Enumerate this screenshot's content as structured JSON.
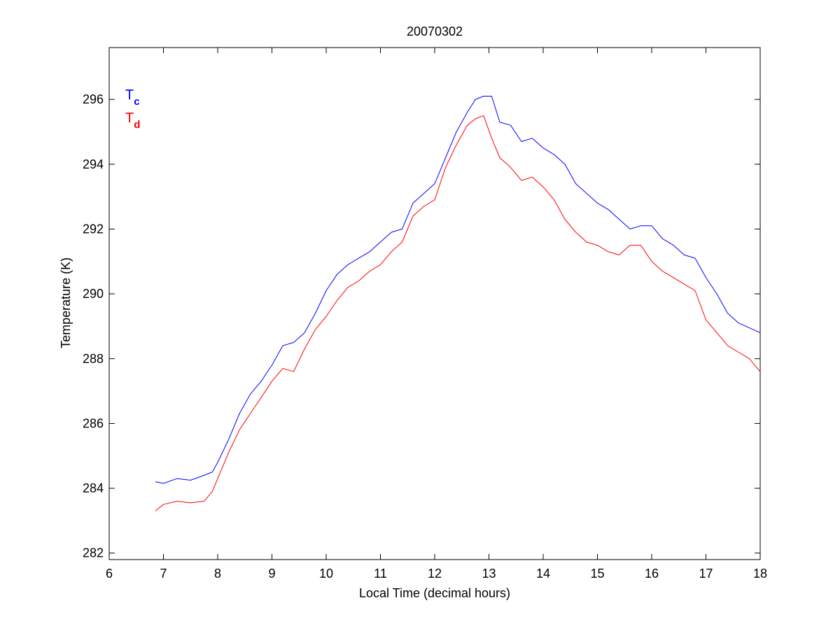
{
  "chart_data": {
    "type": "line",
    "title": "20070302",
    "xlabel": "Local Time (decimal hours)",
    "ylabel": "Temperature (K)",
    "xlim": [
      6,
      18
    ],
    "ylim": [
      281.8,
      297.6
    ],
    "xticks": [
      6,
      7,
      8,
      9,
      10,
      11,
      12,
      13,
      14,
      15,
      16,
      17,
      18
    ],
    "yticks": [
      282,
      284,
      286,
      288,
      290,
      292,
      294,
      296
    ],
    "xtick_labels": [
      "6",
      "7",
      "8",
      "9",
      "10",
      "11",
      "12",
      "13",
      "14",
      "15",
      "16",
      "17",
      "18"
    ],
    "ytick_labels": [
      "282",
      "284",
      "286",
      "288",
      "290",
      "292",
      "294",
      "296"
    ],
    "grid": false,
    "legend_placement": "top-left",
    "legend": [
      {
        "base": "T",
        "sub": "c",
        "color": "#0000ff"
      },
      {
        "base": "T",
        "sub": "d",
        "color": "#ff0000"
      }
    ],
    "series": [
      {
        "color": "#0000ff",
        "x": [
          6.85,
          7.0,
          7.25,
          7.5,
          7.75,
          7.9,
          8.0,
          8.2,
          8.4,
          8.6,
          8.8,
          9.0,
          9.2,
          9.4,
          9.6,
          9.8,
          10.0,
          10.2,
          10.4,
          10.6,
          10.8,
          11.0,
          11.2,
          11.4,
          11.6,
          11.8,
          12.0,
          12.2,
          12.4,
          12.6,
          12.75,
          12.9,
          13.05,
          13.2,
          13.4,
          13.6,
          13.8,
          14.0,
          14.2,
          14.4,
          14.6,
          14.8,
          15.0,
          15.2,
          15.4,
          15.6,
          15.8,
          16.0,
          16.2,
          16.4,
          16.6,
          16.8,
          17.0,
          17.2,
          17.4,
          17.6,
          17.8,
          18.0
        ],
        "values": [
          284.2,
          284.15,
          284.3,
          284.25,
          284.4,
          284.5,
          284.8,
          285.5,
          286.3,
          286.9,
          287.3,
          287.8,
          288.4,
          288.5,
          288.8,
          289.4,
          290.1,
          290.6,
          290.9,
          291.1,
          291.3,
          291.6,
          291.9,
          292.0,
          292.8,
          293.1,
          293.4,
          294.2,
          295.0,
          295.6,
          296.0,
          296.1,
          296.1,
          295.3,
          295.2,
          294.7,
          294.8,
          294.5,
          294.3,
          294.0,
          293.4,
          293.1,
          292.8,
          292.6,
          292.3,
          292.0,
          292.1,
          292.1,
          291.7,
          291.5,
          291.2,
          291.1,
          290.5,
          290.0,
          289.4,
          289.1,
          288.95,
          288.8
        ]
      },
      {
        "color": "#ff0000",
        "x": [
          6.85,
          7.0,
          7.25,
          7.5,
          7.75,
          7.9,
          8.0,
          8.2,
          8.4,
          8.6,
          8.8,
          9.0,
          9.2,
          9.4,
          9.6,
          9.8,
          10.0,
          10.2,
          10.4,
          10.6,
          10.8,
          11.0,
          11.2,
          11.4,
          11.6,
          11.8,
          12.0,
          12.2,
          12.4,
          12.6,
          12.75,
          12.9,
          13.05,
          13.2,
          13.4,
          13.6,
          13.8,
          14.0,
          14.2,
          14.4,
          14.6,
          14.8,
          15.0,
          15.2,
          15.4,
          15.6,
          15.8,
          16.0,
          16.2,
          16.4,
          16.6,
          16.8,
          17.0,
          17.2,
          17.4,
          17.6,
          17.8,
          18.0
        ],
        "values": [
          283.3,
          283.5,
          283.6,
          283.55,
          283.6,
          283.9,
          284.3,
          285.1,
          285.8,
          286.3,
          286.8,
          287.3,
          287.7,
          287.6,
          288.3,
          288.9,
          289.3,
          289.8,
          290.2,
          290.4,
          290.7,
          290.9,
          291.3,
          291.6,
          292.4,
          292.7,
          292.9,
          293.9,
          294.6,
          295.2,
          295.4,
          295.5,
          294.8,
          294.2,
          293.9,
          293.5,
          293.6,
          293.3,
          292.9,
          292.3,
          291.9,
          291.6,
          291.5,
          291.3,
          291.2,
          291.5,
          291.5,
          291.0,
          290.7,
          290.5,
          290.3,
          290.1,
          289.2,
          288.8,
          288.4,
          288.2,
          288.0,
          287.6
        ]
      }
    ]
  }
}
